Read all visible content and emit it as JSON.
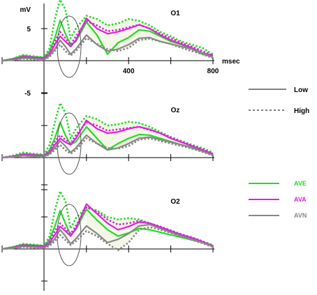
{
  "colors": {
    "AVE": "#22dd22",
    "AVA": "#dd22dd",
    "AVN": "#888888",
    "axis": "#000000",
    "shade": "#f4f6e8",
    "ellipse": "#555555"
  },
  "units": {
    "y": "mV",
    "x": "msec"
  },
  "legend": {
    "lines": [
      {
        "label": "Low",
        "style": "solid"
      },
      {
        "label": "High",
        "style": "dashed"
      }
    ],
    "conditions": [
      {
        "label": "AVE",
        "color_key": "AVE"
      },
      {
        "label": "AVA",
        "color_key": "AVA"
      },
      {
        "label": "AVN",
        "color_key": "AVN"
      }
    ]
  },
  "chart_data": [
    {
      "type": "line",
      "title": "O1",
      "xlabel": "msec",
      "ylabel": "mV",
      "xlim": [
        -200,
        800
      ],
      "ylim": [
        -5,
        10
      ],
      "x_ticks": [
        400,
        800
      ],
      "y_ticks": [
        5,
        -5
      ],
      "x": [
        -200,
        -150,
        -100,
        -50,
        0,
        25,
        50,
        75,
        100,
        125,
        150,
        200,
        250,
        300,
        350,
        400,
        450,
        500,
        550,
        600,
        650,
        700,
        750,
        800
      ],
      "series": [
        {
          "name": "AVE",
          "condition": "AVE",
          "level": "Low",
          "values": [
            0.0,
            0.3,
            0.8,
            0.6,
            0.5,
            1.5,
            3.5,
            6.3,
            4.2,
            2.5,
            3.0,
            6.0,
            4.0,
            1.0,
            2.8,
            3.6,
            4.8,
            4.6,
            3.8,
            3.0,
            2.5,
            1.8,
            1.0,
            0.6
          ]
        },
        {
          "name": "AVE",
          "condition": "AVE",
          "level": "High",
          "values": [
            0.0,
            0.3,
            0.9,
            0.7,
            0.5,
            2.0,
            6.5,
            9.5,
            8.0,
            3.5,
            5.0,
            7.0,
            6.5,
            5.5,
            5.8,
            6.5,
            6.2,
            5.5,
            4.5,
            3.8,
            3.0,
            2.5,
            2.0,
            1.0
          ]
        },
        {
          "name": "AVA",
          "condition": "AVA",
          "level": "Low",
          "values": [
            0.0,
            0.2,
            0.6,
            0.5,
            0.4,
            1.0,
            2.5,
            3.8,
            3.0,
            2.2,
            3.2,
            6.6,
            5.0,
            4.2,
            4.5,
            5.0,
            5.6,
            5.0,
            4.0,
            3.2,
            2.6,
            2.0,
            1.2,
            0.8
          ]
        },
        {
          "name": "AVA",
          "condition": "AVA",
          "level": "High",
          "values": [
            0.0,
            0.2,
            0.6,
            0.5,
            0.4,
            1.2,
            3.0,
            4.5,
            3.5,
            2.5,
            3.8,
            6.2,
            5.5,
            4.6,
            4.8,
            5.2,
            5.6,
            5.0,
            4.2,
            3.5,
            2.8,
            2.2,
            1.5,
            0.8
          ]
        },
        {
          "name": "AVN",
          "condition": "AVN",
          "level": "Low",
          "values": [
            0.0,
            0.1,
            0.4,
            0.3,
            0.2,
            0.8,
            1.8,
            3.2,
            2.2,
            1.0,
            1.8,
            4.0,
            2.5,
            1.5,
            1.8,
            2.5,
            3.5,
            3.6,
            3.0,
            2.6,
            2.2,
            1.8,
            1.2,
            0.5
          ]
        },
        {
          "name": "AVN",
          "condition": "AVN",
          "level": "High",
          "values": [
            0.0,
            0.1,
            0.3,
            0.2,
            0.1,
            0.6,
            1.5,
            2.5,
            1.5,
            0.8,
            1.5,
            3.5,
            2.6,
            1.8,
            1.5,
            2.0,
            3.2,
            3.4,
            3.0,
            2.6,
            2.0,
            1.5,
            1.0,
            0.4
          ]
        }
      ]
    },
    {
      "type": "line",
      "title": "Oz",
      "xlabel": "",
      "ylabel": "",
      "xlim": [
        -200,
        800
      ],
      "ylim": [
        -5,
        10
      ],
      "x": [
        -200,
        -150,
        -100,
        -50,
        0,
        25,
        50,
        75,
        100,
        125,
        150,
        200,
        250,
        300,
        350,
        400,
        450,
        500,
        550,
        600,
        650,
        700,
        750,
        800
      ],
      "series": [
        {
          "name": "AVE",
          "condition": "AVE",
          "level": "Low",
          "values": [
            0.0,
            0.2,
            0.6,
            0.5,
            0.4,
            1.2,
            3.0,
            5.5,
            3.5,
            2.0,
            2.5,
            4.8,
            3.0,
            1.2,
            2.2,
            3.0,
            3.6,
            3.5,
            3.0,
            2.5,
            2.0,
            1.5,
            1.0,
            0.5
          ]
        },
        {
          "name": "AVE",
          "condition": "AVE",
          "level": "High",
          "values": [
            0.0,
            0.3,
            0.8,
            0.6,
            0.5,
            2.0,
            5.5,
            8.5,
            7.0,
            3.0,
            4.5,
            6.5,
            6.0,
            5.0,
            5.2,
            5.6,
            5.4,
            4.8,
            4.0,
            3.2,
            2.6,
            2.0,
            1.5,
            0.8
          ]
        },
        {
          "name": "AVA",
          "condition": "AVA",
          "level": "Low",
          "values": [
            0.0,
            0.2,
            0.5,
            0.4,
            0.3,
            0.8,
            2.0,
            3.0,
            2.4,
            2.0,
            3.0,
            5.8,
            4.5,
            3.8,
            4.0,
            4.5,
            4.8,
            4.4,
            3.8,
            3.0,
            2.4,
            1.8,
            1.2,
            0.6
          ]
        },
        {
          "name": "AVA",
          "condition": "AVA",
          "level": "High",
          "values": [
            0.0,
            0.2,
            0.5,
            0.4,
            0.3,
            1.0,
            2.5,
            3.5,
            2.8,
            2.2,
            3.5,
            5.5,
            5.0,
            4.2,
            4.4,
            4.6,
            4.8,
            4.3,
            3.8,
            3.2,
            2.5,
            1.9,
            1.3,
            0.6
          ]
        },
        {
          "name": "AVN",
          "condition": "AVN",
          "level": "Low",
          "values": [
            0.0,
            0.1,
            0.3,
            0.2,
            0.2,
            0.6,
            1.5,
            2.6,
            1.8,
            0.8,
            1.5,
            3.5,
            2.2,
            1.2,
            1.5,
            2.2,
            3.0,
            3.2,
            2.8,
            2.4,
            2.0,
            1.6,
            1.0,
            0.4
          ]
        },
        {
          "name": "AVN",
          "condition": "AVN",
          "level": "High",
          "values": [
            0.0,
            0.1,
            0.3,
            0.2,
            0.1,
            0.5,
            1.2,
            2.0,
            1.2,
            0.6,
            1.2,
            3.0,
            2.2,
            1.5,
            1.4,
            1.8,
            2.8,
            3.0,
            2.6,
            2.2,
            1.8,
            1.4,
            0.9,
            0.3
          ]
        }
      ]
    },
    {
      "type": "line",
      "title": "O2",
      "xlabel": "",
      "ylabel": "",
      "xlim": [
        -200,
        800
      ],
      "ylim": [
        -5,
        10
      ],
      "x": [
        -200,
        -150,
        -100,
        -50,
        0,
        25,
        50,
        75,
        100,
        125,
        150,
        200,
        250,
        300,
        350,
        400,
        450,
        500,
        550,
        600,
        650,
        700,
        750,
        800
      ],
      "series": [
        {
          "name": "AVE",
          "condition": "AVE",
          "level": "Low",
          "values": [
            0.0,
            0.3,
            0.7,
            0.6,
            0.5,
            1.5,
            3.5,
            6.0,
            4.0,
            2.2,
            3.0,
            6.2,
            4.5,
            3.0,
            2.0,
            2.5,
            3.2,
            3.0,
            2.6,
            2.2,
            1.8,
            1.4,
            1.0,
            0.5
          ]
        },
        {
          "name": "AVE",
          "condition": "AVE",
          "level": "High",
          "values": [
            0.0,
            0.3,
            0.8,
            0.7,
            0.5,
            2.0,
            6.0,
            9.0,
            7.5,
            3.2,
            4.8,
            6.5,
            6.0,
            5.0,
            4.6,
            4.8,
            4.6,
            4.0,
            3.4,
            2.8,
            2.2,
            1.8,
            1.2,
            0.6
          ]
        },
        {
          "name": "AVA",
          "condition": "AVA",
          "level": "Low",
          "values": [
            0.0,
            0.2,
            0.6,
            0.5,
            0.4,
            1.0,
            2.2,
            3.5,
            2.8,
            2.0,
            3.2,
            7.0,
            5.5,
            4.0,
            3.0,
            3.5,
            4.2,
            4.0,
            3.4,
            2.8,
            2.2,
            1.7,
            1.1,
            0.5
          ]
        },
        {
          "name": "AVA",
          "condition": "AVA",
          "level": "High",
          "values": [
            0.0,
            0.2,
            0.6,
            0.5,
            0.4,
            1.2,
            2.8,
            4.0,
            3.2,
            2.4,
            3.6,
            6.5,
            5.8,
            4.6,
            3.8,
            4.0,
            4.4,
            4.0,
            3.5,
            2.9,
            2.3,
            1.8,
            1.2,
            0.5
          ]
        },
        {
          "name": "AVN",
          "condition": "AVN",
          "level": "Low",
          "values": [
            0.0,
            0.1,
            0.4,
            0.3,
            0.2,
            0.7,
            1.6,
            3.0,
            2.0,
            0.8,
            1.6,
            3.6,
            2.4,
            1.0,
            1.5,
            2.4,
            3.6,
            3.8,
            3.2,
            2.6,
            2.0,
            1.5,
            1.0,
            0.4
          ]
        },
        {
          "name": "AVN",
          "condition": "AVN",
          "level": "High",
          "values": [
            0.0,
            0.1,
            0.3,
            0.2,
            0.1,
            0.5,
            1.2,
            2.2,
            1.4,
            0.6,
            1.2,
            2.8,
            2.0,
            0.8,
            -0.2,
            1.0,
            3.0,
            3.4,
            3.0,
            2.5,
            2.0,
            1.4,
            0.9,
            0.3
          ]
        }
      ]
    }
  ]
}
